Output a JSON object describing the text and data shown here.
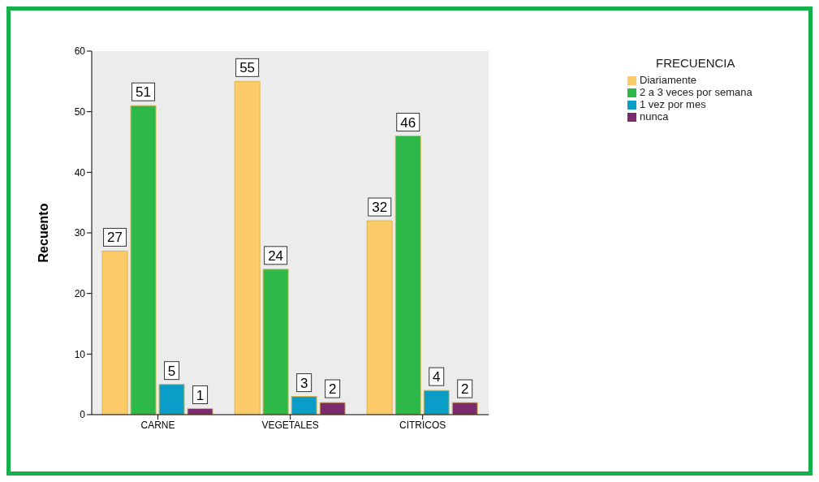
{
  "chart_data": {
    "type": "bar",
    "ylabel": "Recuento",
    "legend_title": "FRECUENCIA",
    "categories": [
      "CARNE",
      "VEGETALES",
      "CITRICOS"
    ],
    "series": [
      {
        "name": "Diariamente",
        "color": "#fdca6a",
        "values": [
          27,
          55,
          32
        ]
      },
      {
        "name": "2 a 3 veces por semana",
        "color": "#2db84a",
        "values": [
          51,
          24,
          46
        ]
      },
      {
        "name": "1 vez por mes",
        "color": "#0a9dc7",
        "values": [
          5,
          3,
          4
        ]
      },
      {
        "name": "nunca",
        "color": "#7b2a6e",
        "values": [
          1,
          2,
          2
        ]
      }
    ],
    "ylim": [
      0,
      60
    ],
    "yticks": [
      0,
      10,
      20,
      30,
      40,
      50,
      60
    ],
    "data_labels": true,
    "legend": "top right"
  }
}
